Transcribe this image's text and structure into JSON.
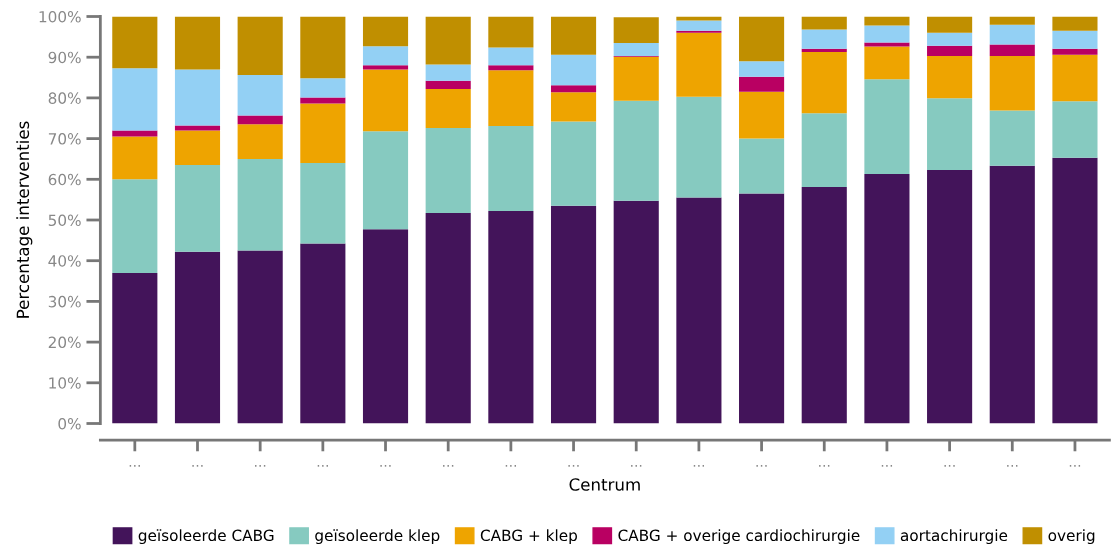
{
  "chart_data": {
    "type": "bar",
    "stacked": true,
    "xlabel": "Centrum",
    "ylabel": "Percentage interventies",
    "categories": [
      "...",
      "...",
      "...",
      "...",
      "...",
      "...",
      "...",
      "...",
      "...",
      "...",
      "...",
      "...",
      "...",
      "...",
      "...",
      "..."
    ],
    "series": [
      {
        "name": "geïsoleerde CABG",
        "color": "#43145a",
        "values": [
          37,
          42.2,
          42.5,
          44.2,
          47.7,
          51.7,
          52.2,
          53.5,
          54.7,
          55.5,
          56.5,
          58.1,
          61.3,
          62.3,
          63.3,
          65.3
        ]
      },
      {
        "name": "geïsoleerde klep",
        "color": "#86cac0",
        "values": [
          23,
          21.3,
          22.5,
          19.8,
          24.1,
          20.9,
          20.9,
          20.7,
          24.6,
          24.8,
          13.5,
          18.1,
          23.3,
          17.6,
          13.6,
          13.9
        ]
      },
      {
        "name": "CABG + klep",
        "color": "#eea400",
        "values": [
          10.5,
          8.5,
          8.5,
          14.6,
          15.2,
          9.6,
          13.7,
          7.2,
          10.8,
          15.7,
          11.5,
          15.1,
          8,
          10.4,
          13.4,
          11.4
        ]
      },
      {
        "name": "CABG + overige cardiochirurgie",
        "color": "#b90062",
        "values": [
          1.5,
          1.2,
          2.2,
          1.5,
          1,
          2,
          1.2,
          1.7,
          0.2,
          0.5,
          3.7,
          0.8,
          1,
          2.5,
          2.8,
          1.5
        ]
      },
      {
        "name": "aortachirurgie",
        "color": "#93d0f4",
        "values": [
          15.3,
          13.8,
          9.9,
          4.7,
          4.7,
          4,
          4.4,
          7.5,
          3.2,
          2.5,
          3.8,
          4.7,
          4.2,
          3.2,
          4.9,
          4.4
        ]
      },
      {
        "name": "overig",
        "color": "#c08f00",
        "values": [
          12.7,
          13,
          14.4,
          15.2,
          7.3,
          11.8,
          7.6,
          9.4,
          6.3,
          1,
          11,
          3.2,
          2.2,
          4,
          2,
          3.5
        ]
      }
    ],
    "ylim": [
      0,
      100
    ],
    "yticks": [
      {
        "value": 0,
        "label": "0%"
      },
      {
        "value": 10,
        "label": "10%"
      },
      {
        "value": 20,
        "label": "20%"
      },
      {
        "value": 30,
        "label": "30%"
      },
      {
        "value": 40,
        "label": "40%"
      },
      {
        "value": 50,
        "label": "50%"
      },
      {
        "value": 60,
        "label": "60%"
      },
      {
        "value": 70,
        "label": "70%"
      },
      {
        "value": 80,
        "label": "80%"
      },
      {
        "value": 90,
        "label": "90%"
      },
      {
        "value": 100,
        "label": "100%"
      }
    ],
    "grid": false,
    "legend": "bottom"
  }
}
